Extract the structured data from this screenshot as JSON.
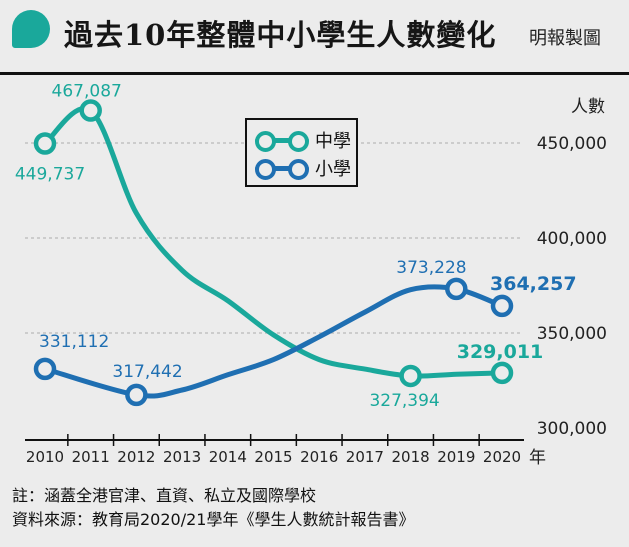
{
  "header": {
    "title": "過去10年整體中小學生人數變化",
    "source": "明報製圖"
  },
  "colors": {
    "secondary": "#1aa89b",
    "primary": "#1f6fb2",
    "grid": "#b9b9b9",
    "axis": "#111111"
  },
  "chart_data": {
    "type": "line",
    "x": [
      "2010",
      "2011",
      "2012",
      "2013",
      "2014",
      "2015",
      "2016",
      "2017",
      "2018",
      "2019",
      "2020"
    ],
    "x_suffix": "年",
    "ylabel": "人數",
    "ylim": [
      300000,
      470000
    ],
    "yticks": [
      "300,000",
      "350,000",
      "400,000",
      "450,000"
    ],
    "ytick_values": [
      300000,
      350000,
      400000,
      450000
    ],
    "grid": "horizontal dashed",
    "legend_position": "top-center",
    "series": [
      {
        "name": "中學",
        "color": "#1aa89b",
        "values": [
          449737,
          467087,
          413000,
          383000,
          367000,
          349000,
          336000,
          331000,
          327394,
          328300,
          329011
        ],
        "labels": [
          {
            "index": 0,
            "text": "449,737",
            "bold": false
          },
          {
            "index": 1,
            "text": "467,087",
            "bold": false
          },
          {
            "index": 8,
            "text": "327,394",
            "bold": false
          },
          {
            "index": 10,
            "text": "329,011",
            "bold": true
          }
        ],
        "markers": [
          0,
          1,
          8,
          10
        ]
      },
      {
        "name": "小學",
        "color": "#1f6fb2",
        "values": [
          331112,
          null,
          317442,
          320000,
          328000,
          336000,
          348000,
          361000,
          372800,
          373228,
          364257
        ],
        "labels": [
          {
            "index": 0,
            "text": "331,112",
            "bold": false
          },
          {
            "index": 2,
            "text": "317,442",
            "bold": false
          },
          {
            "index": 9,
            "text": "373,228",
            "bold": false
          },
          {
            "index": 10,
            "text": "364,257",
            "bold": true
          }
        ],
        "markers": [
          0,
          2,
          9,
          10
        ]
      }
    ]
  },
  "notes": [
    "註：涵蓋全港官津、直資、私立及國際學校",
    "資料來源：教育局2020/21學年《學生人數統計報告書》"
  ]
}
